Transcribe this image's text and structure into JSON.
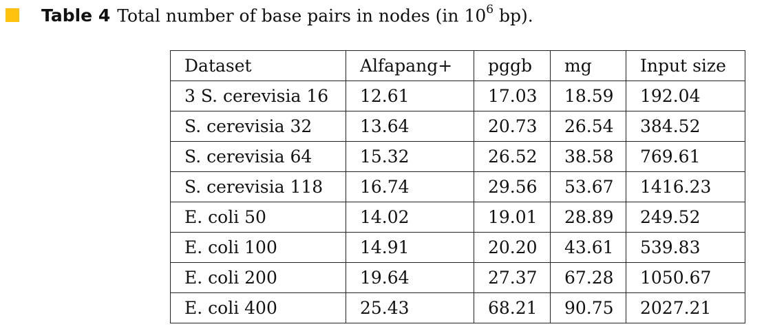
{
  "caption": {
    "label": "Table 4",
    "text_before": "Total number of base pairs in nodes (in 10",
    "exponent": "6",
    "text_after": " bp).",
    "marker_color": "#ffc20e"
  },
  "table": {
    "headers": [
      "Dataset",
      "Alfapang+",
      "pggb",
      "mg",
      "Input size"
    ],
    "rows": [
      [
        "3 S. cerevisia 16",
        "12.61",
        "17.03",
        "18.59",
        "192.04"
      ],
      [
        "S. cerevisia 32",
        "13.64",
        "20.73",
        "26.54",
        "384.52"
      ],
      [
        "S. cerevisia 64",
        "15.32",
        "26.52",
        "38.58",
        "769.61"
      ],
      [
        "S. cerevisia 118",
        "16.74",
        "29.56",
        "53.67",
        "1416.23"
      ],
      [
        "E. coli 50",
        "14.02",
        "19.01",
        "28.89",
        "249.52"
      ],
      [
        "E. coli 100",
        "14.91",
        "20.20",
        "43.61",
        "539.83"
      ],
      [
        "E. coli 200",
        "19.64",
        "27.37",
        "67.28",
        "1050.67"
      ],
      [
        "E. coli 400",
        "25.43",
        "68.21",
        "90.75",
        "2027.21"
      ]
    ]
  }
}
